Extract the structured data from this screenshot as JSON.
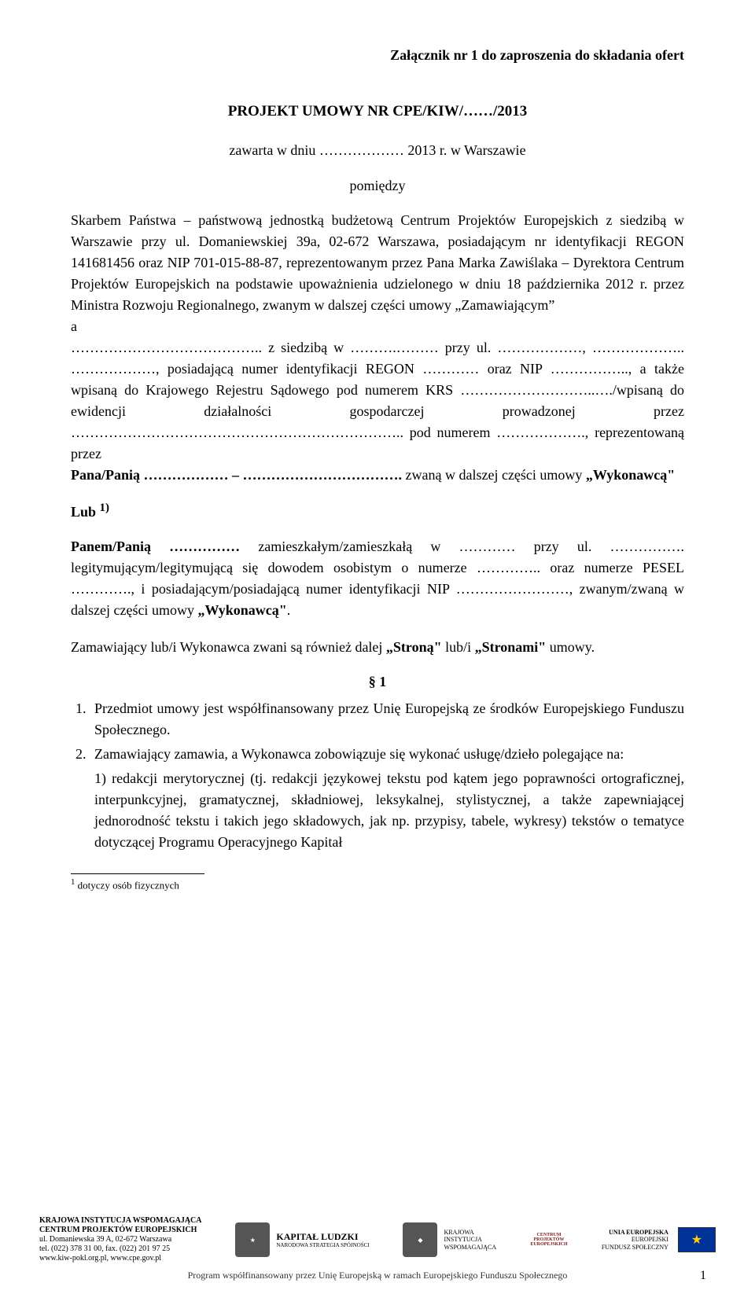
{
  "attachment": "Załącznik nr 1 do zaproszenia do składania ofert",
  "title": "PROJEKT UMOWY NR CPE/KIW/……/2013",
  "concluded": "zawarta w dniu ……………… 2013 r. w Warszawie",
  "between": "pomiędzy",
  "party_a": "Skarbem Państwa – państwową jednostką budżetową Centrum Projektów Europejskich z siedzibą w Warszawie przy ul. Domaniewskiej 39a, 02-672 Warszawa, posiadającym nr identyfikacji REGON 141681456 oraz NIP 701-015-88-87, reprezentowanym przez Pana Marka Zawiślaka – Dyrektora Centrum Projektów Europejskich na podstawie upoważnienia udzielonego w dniu 18 października 2012 r. przez Ministra Rozwoju Regionalnego, zwanym w dalszej części umowy „Zamawiającym”",
  "a_line": "a",
  "party_b": "………………………………….. z siedzibą w ……….……… przy ul. ………………, ……………….. ………………, posiadającą numer identyfikacji REGON ………… oraz NIP …………….., a także wpisaną do Krajowego Rejestru Sądowego pod numerem KRS ………………………..…./wpisaną do ewidencji działalności gospodarczej prowadzonej przez …………………………………………………………….. pod numerem ………………., reprezentowaną przez",
  "pana_pania": "Pana/Panią ……………… – ……………………………. zwaną w dalszej części umowy „Wykonawcą”",
  "lub": "Lub ",
  "lub_sup": "1)",
  "panem_pania": "Panem/Panią …………… zamieszkałym/zamieszkałą w ………… przy ul. ……………. legitymującym/legitymującą się dowodem osobistym o numerze ………….. oraz numerze PESEL …………., i posiadającym/posiadającą numer identyfikacji NIP ……………………, zwanym/zwaną w dalszej części umowy „Wykonawcą”.",
  "strony": "Zamawiający lub/i Wykonawca zwani są również dalej „Stroną” lub/i „Stronami” umowy.",
  "section1_heading": "§ 1",
  "s1_item1": "Przedmiot umowy jest współfinansowany przez Unię Europejską ze środków Europejskiego Funduszu Społecznego.",
  "s1_item2": "Zamawiający zamawia, a Wykonawca zobowiązuje się wykonać usługę/dzieło polegające na:",
  "s1_item2_sub1": "1) redakcji merytorycznej (tj. redakcji językowej tekstu pod kątem jego poprawności ortograficznej, interpunkcyjnej, gramatycznej, składniowej, leksykalnej, stylistycznej, a także zapewniającej jednorodność tekstu i takich jego składowych, jak np. przypisy, tabele, wykresy) tekstów o tematyce dotyczącej Programu Operacyjnego Kapitał",
  "footnote_marker": "1",
  "footnote_text": " dotyczy osób fizycznych",
  "footer": {
    "kiw_title": "KRAJOWA INSTYTUCJA WSPOMAGAJĄCA",
    "kiw_sub": "CENTRUM PROJEKTÓW EUROPEJSKICH",
    "kiw_addr1": "ul. Domaniewska 39 A, 02-672 Warszawa",
    "kiw_addr2": "tel. (022) 378 31 00, fax. (022) 201 97 25",
    "kiw_addr3": "www.kiw-pokl.org.pl, www.cpe.gov.pl",
    "kl_title": "KAPITAŁ LUDZKI",
    "kl_sub": "NARODOWA STRATEGIA SPÓJNOŚCI",
    "kiw_center": "KRAJOWA\nINSTYTUCJA\nWSPOMAGAJĄCA",
    "cpe": "CENTRUM\nPROJEKTÓW\nEUROPEJSKICH",
    "eu1": "UNIA EUROPEJSKA",
    "eu2": "EUROPEJSKI",
    "eu3": "FUNDUSZ SPOŁECZNY",
    "program": "Program współfinansowany przez Unię Europejską w ramach Europejskiego Funduszu Społecznego"
  },
  "page_number": "1"
}
